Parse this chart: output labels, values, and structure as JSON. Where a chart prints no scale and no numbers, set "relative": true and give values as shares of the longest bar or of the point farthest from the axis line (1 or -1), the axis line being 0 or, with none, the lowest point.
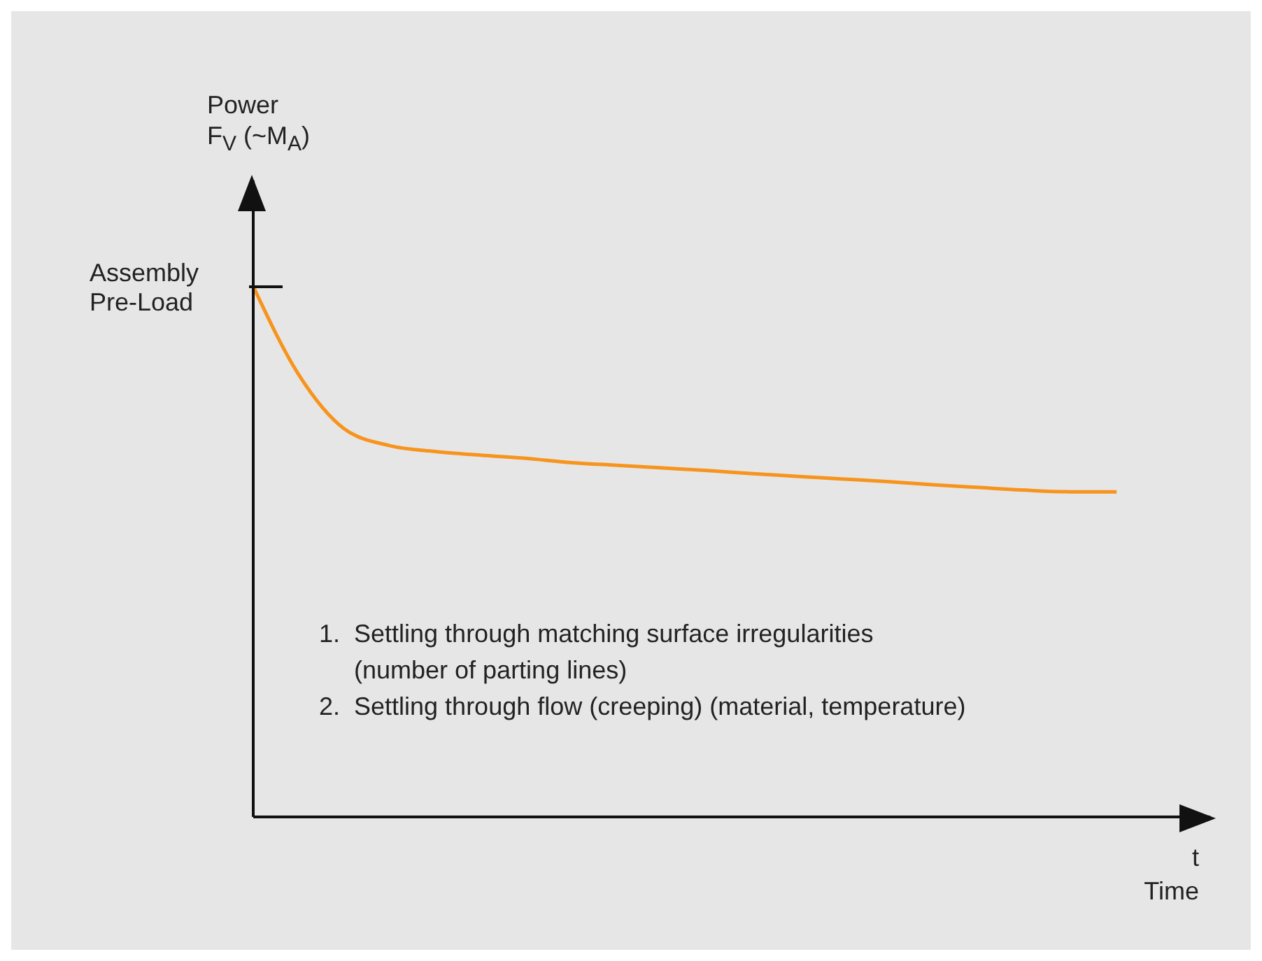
{
  "chart_data": {
    "type": "line",
    "relative": true,
    "xlabel": "t\nTime",
    "categories": [
      null,
      null,
      null,
      null,
      null,
      null,
      null,
      null,
      null,
      null,
      null,
      null,
      null,
      null,
      null,
      null,
      null,
      null,
      null,
      null
    ],
    "series": [
      {
        "color": "#f7941d",
        "values": [
          1,
          0.834,
          0.732,
          0.7,
          0.689,
          0.682,
          0.676,
          0.668,
          0.663,
          0.658,
          0.653,
          0.647,
          0.642,
          0.637,
          0.632,
          0.626,
          0.621,
          0.616,
          0.613,
          0.613
        ]
      }
    ],
    "annotations": [
      "Power\nF$_{V}$ (~M$_{A}$)",
      "Assembly\nPre-Load",
      "1.  Settling through matching surface irregularities\n     (number of parting lines)\n2.  Settling through flow (creeping) (material, temperature)"
    ],
    "marker": "none",
    "line_style": "solid"
  }
}
